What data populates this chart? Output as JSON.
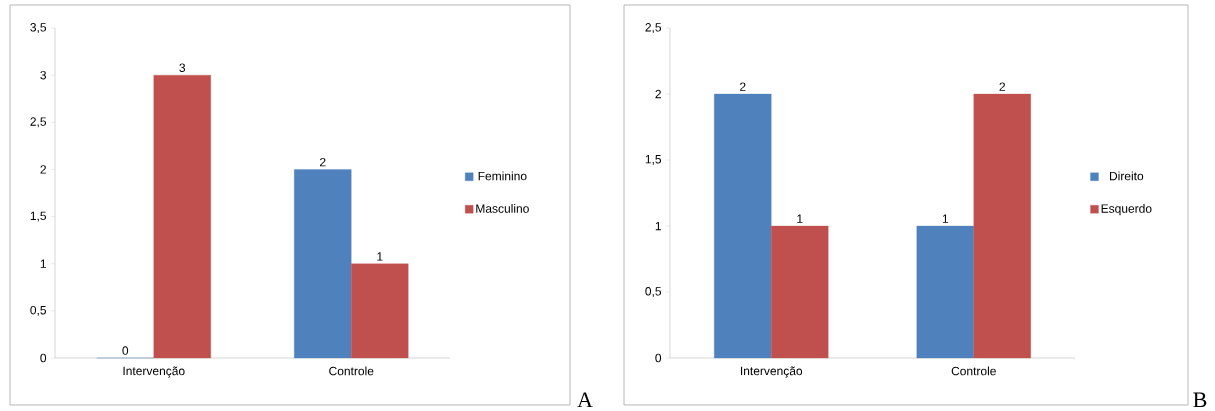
{
  "chart_data": [
    {
      "type": "bar",
      "categories": [
        "Intervenção",
        "Controle"
      ],
      "series": [
        {
          "name": "Feminino",
          "color": "#4f81bd",
          "values": [
            0,
            2
          ]
        },
        {
          "name": "Masculino",
          "color": "#c0504d",
          "values": [
            3,
            1
          ]
        }
      ],
      "ylim": [
        0,
        3.5
      ],
      "yticks": [
        0,
        {
          "value": 0.5,
          "label": "0,5"
        },
        1,
        {
          "value": 1.5,
          "label": "1,5"
        },
        2,
        {
          "value": 2.5,
          "label": "2,5"
        },
        3,
        {
          "value": 3.5,
          "label": "3,5"
        }
      ],
      "data_labels": true,
      "legend": "right",
      "annotations": [
        "A"
      ]
    },
    {
      "type": "bar",
      "categories": [
        "Intervenção",
        "Controle"
      ],
      "series": [
        {
          "name": "Direito",
          "color": "#4f81bd",
          "values": [
            2,
            1
          ]
        },
        {
          "name": "Esquerdo",
          "color": "#c0504d",
          "values": [
            1,
            2
          ]
        }
      ],
      "ylim": [
        0,
        2.5
      ],
      "yticks": [
        0,
        {
          "value": 0.5,
          "label": "0,5"
        },
        1,
        {
          "value": 1.5,
          "label": "1,5"
        },
        2,
        {
          "value": 2.5,
          "label": "2,5"
        }
      ],
      "data_labels": true,
      "legend": "right",
      "annotations": [
        "B"
      ]
    }
  ]
}
